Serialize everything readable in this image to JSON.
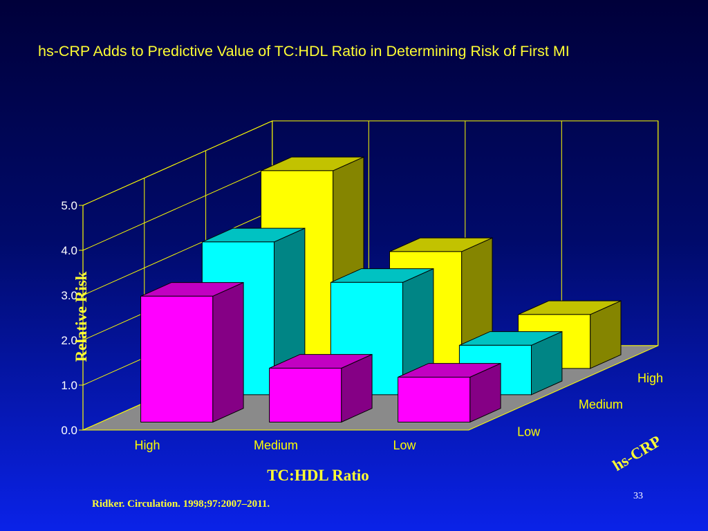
{
  "slide": {
    "title": "hs-CRP Adds to Predictive Value of TC:HDL Ratio in Determining Risk of First MI",
    "citation": "Ridker. Circulation. 1998;97:2007–2011.",
    "page_number": "33"
  },
  "chart_data": {
    "type": "bar",
    "style": "3d-grouped",
    "ylabel": "Relative Risk",
    "xlabel": "TC:HDL Ratio",
    "zlabel": "hs-CRP",
    "ylim": [
      0,
      5
    ],
    "yticks": [
      "0.0",
      "1.0",
      "2.0",
      "3.0",
      "4.0",
      "5.0"
    ],
    "categories": [
      "High",
      "Medium",
      "Low"
    ],
    "grid": true,
    "series": [
      {
        "name": "Low",
        "color": "#ff00ff",
        "values": [
          2.8,
          1.2,
          1.0
        ]
      },
      {
        "name": "Medium",
        "color": "#00ffff",
        "values": [
          3.4,
          2.5,
          1.1
        ]
      },
      {
        "name": "High",
        "color": "#ffff00",
        "values": [
          4.4,
          2.6,
          1.2
        ]
      }
    ]
  }
}
